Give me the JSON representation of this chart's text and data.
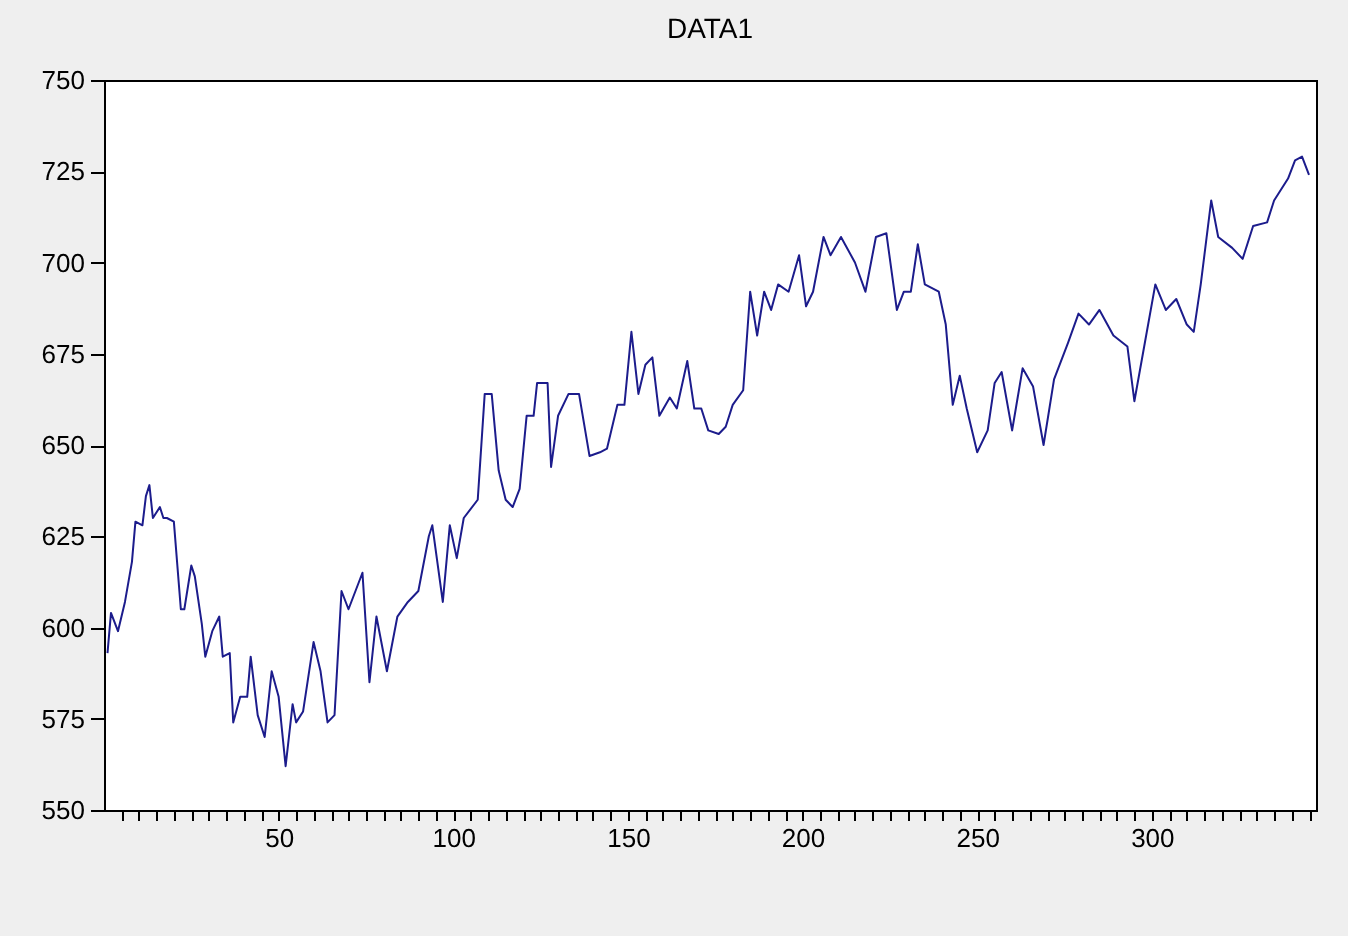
{
  "chart_data": {
    "type": "line",
    "title": "DATA1",
    "x": [
      1,
      2,
      4,
      6,
      8,
      9,
      11,
      12,
      13,
      14,
      16,
      17,
      18,
      20,
      22,
      23,
      25,
      26,
      28,
      29,
      31,
      33,
      34,
      36,
      37,
      39,
      41,
      42,
      44,
      46,
      48,
      50,
      52,
      54,
      55,
      57,
      60,
      62,
      64,
      66,
      68,
      70,
      72,
      74,
      76,
      78,
      81,
      84,
      87,
      90,
      93,
      94,
      97,
      99,
      101,
      103,
      107,
      109,
      111,
      113,
      115,
      117,
      119,
      121,
      123,
      124,
      127,
      128,
      130,
      133,
      136,
      139,
      142,
      144,
      147,
      149,
      151,
      153,
      155,
      157,
      159,
      162,
      164,
      167,
      169,
      171,
      173,
      176,
      178,
      180,
      183,
      185,
      187,
      189,
      191,
      193,
      196,
      199,
      201,
      203,
      206,
      208,
      211,
      215,
      218,
      221,
      224,
      227,
      229,
      231,
      233,
      235,
      239,
      241,
      243,
      245,
      247,
      250,
      253,
      255,
      257,
      260,
      263,
      266,
      269,
      272,
      276,
      279,
      282,
      285,
      289,
      293,
      295,
      298,
      301,
      304,
      307,
      310,
      312,
      314,
      317,
      319,
      323,
      326,
      329,
      333,
      335,
      339,
      341,
      343,
      345
    ],
    "series": [
      {
        "color": "#1c1c8c",
        "values": [
          593,
          604,
          599,
          607,
          618,
          629,
          628,
          636,
          639,
          630,
          633,
          630,
          630,
          629,
          605,
          605,
          617,
          614,
          601,
          592,
          599,
          603,
          592,
          593,
          574,
          581,
          581,
          592,
          576,
          570,
          588,
          581,
          562,
          579,
          574,
          577,
          596,
          588,
          574,
          576,
          610,
          605,
          610,
          615,
          585,
          603,
          588,
          603,
          607,
          610,
          625,
          628,
          607,
          628,
          619,
          630,
          635,
          664,
          664,
          643,
          635,
          633,
          638,
          658,
          658,
          667,
          667,
          644,
          658,
          664,
          664,
          647,
          648,
          649,
          661,
          661,
          681,
          664,
          672,
          674,
          658,
          663,
          660,
          673,
          660,
          660,
          654,
          653,
          655,
          661,
          665,
          692,
          680,
          692,
          687,
          694,
          692,
          702,
          688,
          692,
          707,
          702,
          707,
          700,
          692,
          707,
          708,
          687,
          692,
          692,
          705,
          694,
          692,
          683,
          661,
          669,
          660,
          648,
          654,
          667,
          670,
          654,
          671,
          666,
          650,
          668,
          678,
          686,
          683,
          687,
          680,
          677,
          662,
          678,
          694,
          687,
          690,
          683,
          681,
          694,
          717,
          707,
          704,
          701,
          710,
          711,
          717,
          723,
          728,
          729,
          724
        ]
      }
    ],
    "xlim": [
      0,
      347
    ],
    "xticks": [
      {
        "value": 5,
        "label": null
      },
      {
        "value": 10,
        "label": null
      },
      {
        "value": 15,
        "label": null
      },
      {
        "value": 20,
        "label": null
      },
      {
        "value": 25,
        "label": null
      },
      {
        "value": 30,
        "label": null
      },
      {
        "value": 35,
        "label": null
      },
      {
        "value": 40,
        "label": null
      },
      {
        "value": 45,
        "label": null
      },
      50,
      {
        "value": 55,
        "label": null
      },
      {
        "value": 60,
        "label": null
      },
      {
        "value": 65,
        "label": null
      },
      {
        "value": 70,
        "label": null
      },
      {
        "value": 75,
        "label": null
      },
      {
        "value": 80,
        "label": null
      },
      {
        "value": 85,
        "label": null
      },
      {
        "value": 90,
        "label": null
      },
      {
        "value": 95,
        "label": null
      },
      100,
      {
        "value": 105,
        "label": null
      },
      {
        "value": 110,
        "label": null
      },
      {
        "value": 115,
        "label": null
      },
      {
        "value": 120,
        "label": null
      },
      {
        "value": 125,
        "label": null
      },
      {
        "value": 130,
        "label": null
      },
      {
        "value": 135,
        "label": null
      },
      {
        "value": 140,
        "label": null
      },
      {
        "value": 145,
        "label": null
      },
      150,
      {
        "value": 155,
        "label": null
      },
      {
        "value": 160,
        "label": null
      },
      {
        "value": 165,
        "label": null
      },
      {
        "value": 170,
        "label": null
      },
      {
        "value": 175,
        "label": null
      },
      {
        "value": 180,
        "label": null
      },
      {
        "value": 185,
        "label": null
      },
      {
        "value": 190,
        "label": null
      },
      {
        "value": 195,
        "label": null
      },
      200,
      {
        "value": 205,
        "label": null
      },
      {
        "value": 210,
        "label": null
      },
      {
        "value": 215,
        "label": null
      },
      {
        "value": 220,
        "label": null
      },
      {
        "value": 225,
        "label": null
      },
      {
        "value": 230,
        "label": null
      },
      {
        "value": 235,
        "label": null
      },
      {
        "value": 240,
        "label": null
      },
      {
        "value": 245,
        "label": null
      },
      250,
      {
        "value": 255,
        "label": null
      },
      {
        "value": 260,
        "label": null
      },
      {
        "value": 265,
        "label": null
      },
      {
        "value": 270,
        "label": null
      },
      {
        "value": 275,
        "label": null
      },
      {
        "value": 280,
        "label": null
      },
      {
        "value": 285,
        "label": null
      },
      {
        "value": 290,
        "label": null
      },
      {
        "value": 295,
        "label": null
      },
      300,
      {
        "value": 305,
        "label": null
      },
      {
        "value": 310,
        "label": null
      },
      {
        "value": 315,
        "label": null
      },
      {
        "value": 320,
        "label": null
      },
      {
        "value": 325,
        "label": null
      },
      {
        "value": 330,
        "label": null
      },
      {
        "value": 335,
        "label": null
      },
      {
        "value": 340,
        "label": null
      },
      {
        "value": 345,
        "label": null
      }
    ],
    "ylim": [
      550,
      750
    ],
    "yticks": [
      550,
      575,
      600,
      625,
      650,
      675,
      700,
      725,
      750
    ],
    "grid": false
  }
}
